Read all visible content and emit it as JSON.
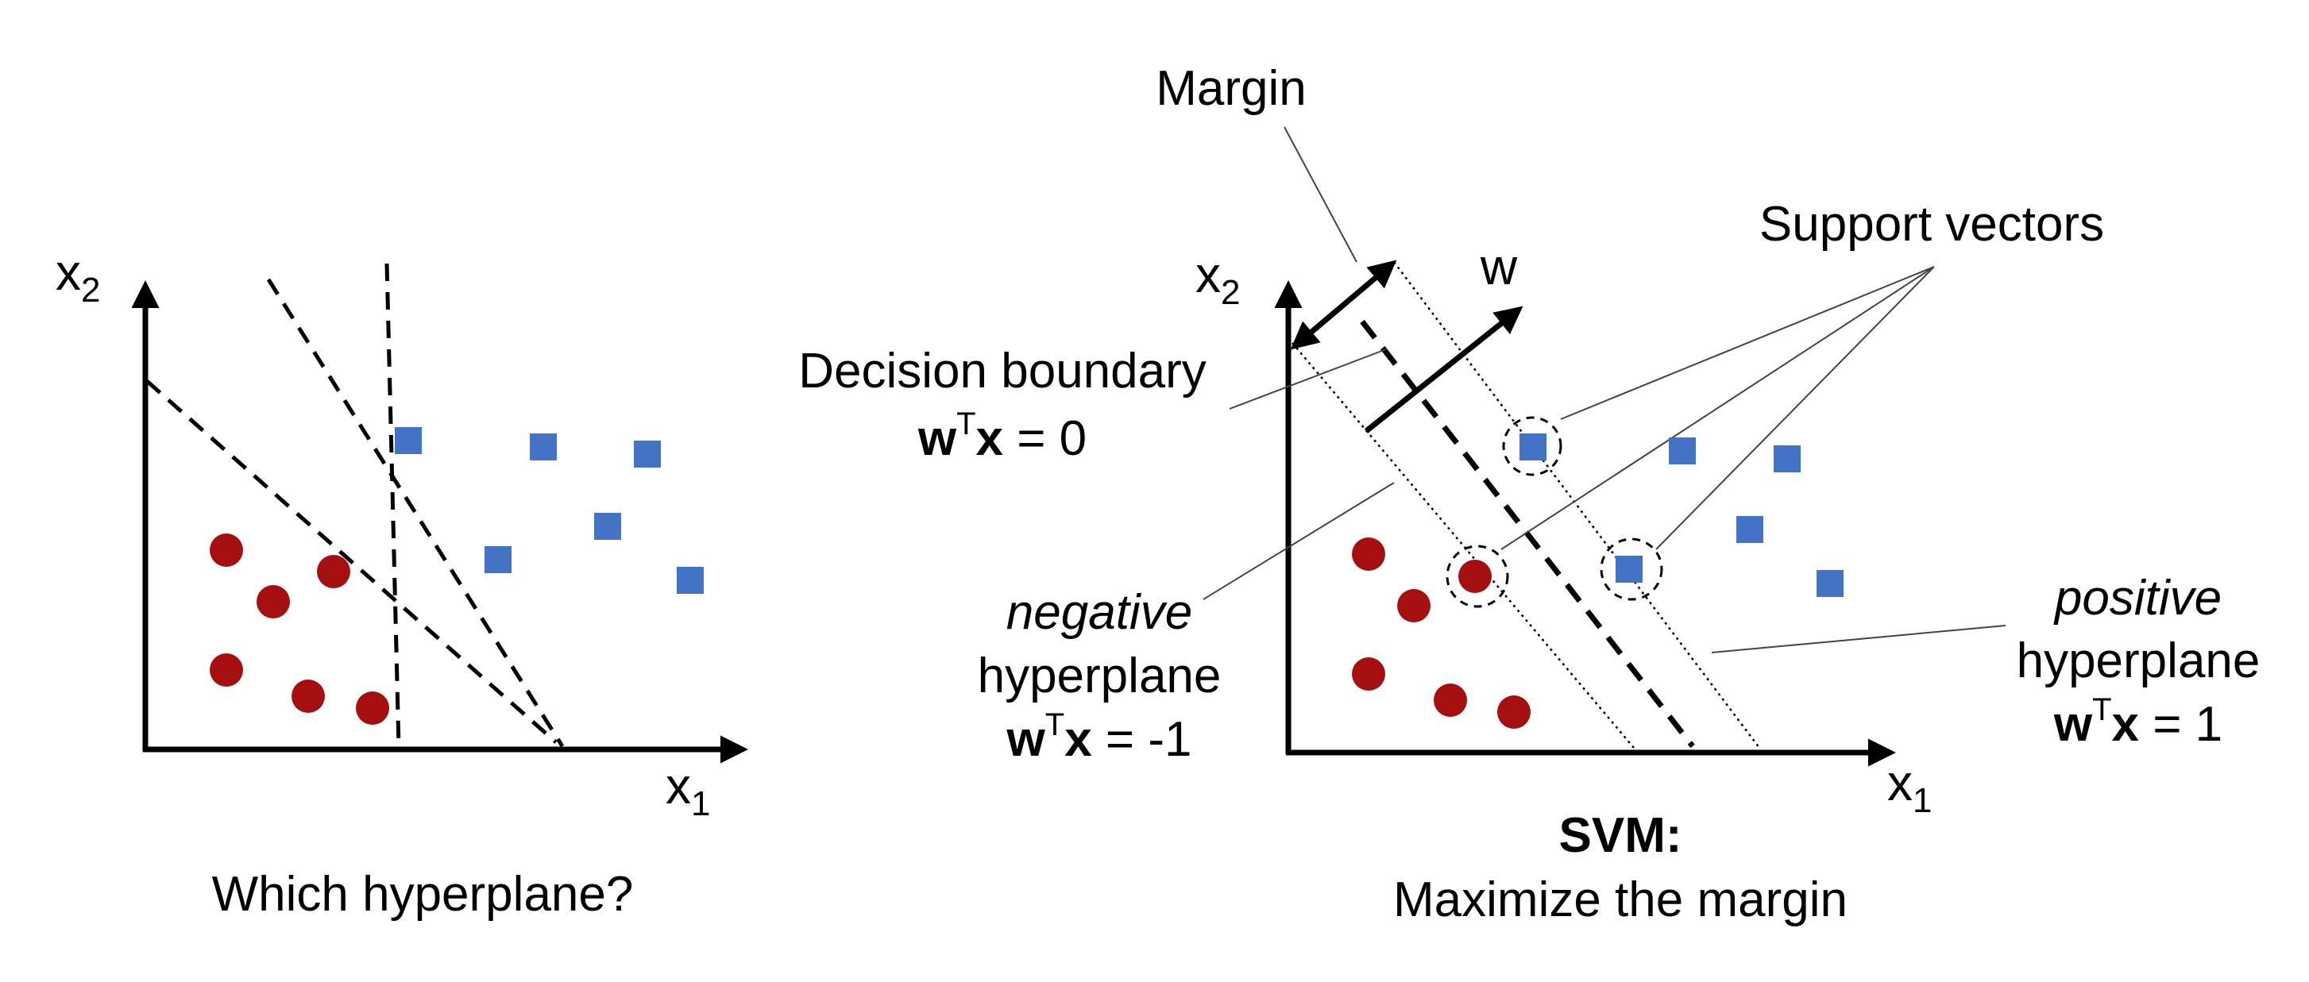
{
  "colors": {
    "negative_class": "#a50f0f",
    "positive_class": "#4472c4",
    "ink": "#000000"
  },
  "left_panel": {
    "y_axis": "x",
    "y_axis_sub": "2",
    "x_axis": "x",
    "x_axis_sub": "1",
    "caption": "Which hyperplane?"
  },
  "right_panel": {
    "y_axis": "x",
    "y_axis_sub": "2",
    "x_axis": "x",
    "x_axis_sub": "1",
    "margin_label": "Margin",
    "w_label": "w",
    "support_vectors_label": "Support vectors",
    "decision_boundary": {
      "title": "Decision boundary",
      "w": "w",
      "sup": "T",
      "x": "x",
      "eq": " = 0"
    },
    "negative_hyperplane": {
      "word": "negative",
      "line2": "hyperplane",
      "w": "w",
      "sup": "T",
      "x": "x",
      "eq": " = -1"
    },
    "positive_hyperplane": {
      "word": "positive",
      "line2": "hyperplane",
      "w": "w",
      "sup": "T",
      "x": "x",
      "eq": " = 1"
    },
    "caption_title": "SVM:",
    "caption_sub": "Maximize the margin"
  }
}
